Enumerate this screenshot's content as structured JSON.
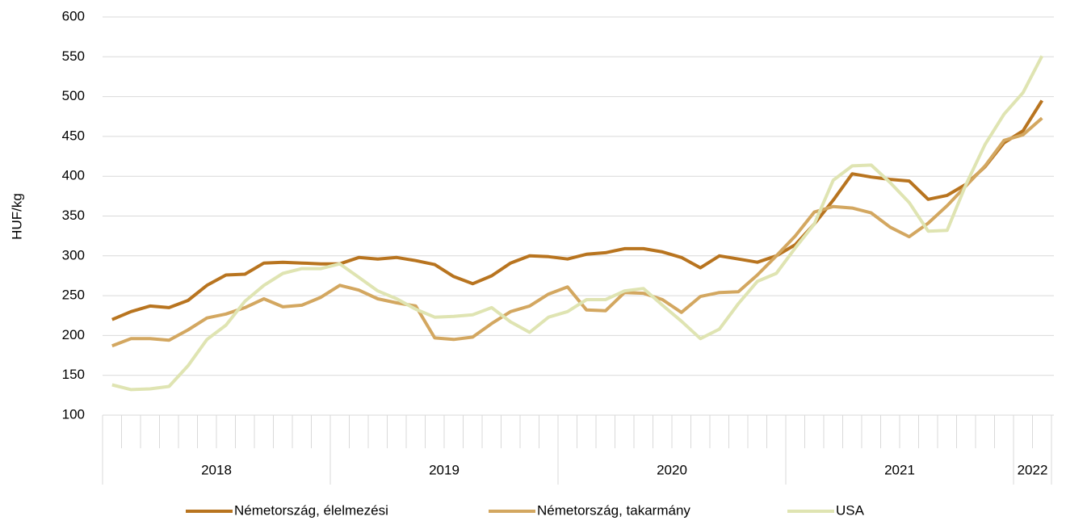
{
  "chart_data": {
    "type": "line",
    "y_label": "HUF/kg",
    "categories": [
      null,
      null,
      null,
      null,
      null,
      null,
      null,
      null,
      null,
      null,
      null,
      null,
      null,
      null,
      null,
      null,
      null,
      null,
      null,
      null,
      null,
      null,
      null,
      null,
      null,
      null,
      null,
      null,
      null,
      null,
      null,
      null,
      null,
      null,
      null,
      null,
      null,
      null,
      null,
      null,
      null,
      null,
      null,
      null,
      null,
      null,
      null,
      null,
      null,
      null
    ],
    "groups": [
      {
        "label": "2018",
        "span": 12
      },
      {
        "label": "2019",
        "span": 12
      },
      {
        "label": "2020",
        "span": 12
      },
      {
        "label": "2021",
        "span": 12
      },
      {
        "label": "2022",
        "span": 2
      }
    ],
    "series": [
      {
        "name": "Németország, élelmezési",
        "color": "#b8741f",
        "values": [
          220,
          230,
          237,
          235,
          244,
          263,
          276,
          277,
          291,
          292,
          291,
          290,
          290,
          298,
          296,
          298,
          294,
          289,
          274,
          265,
          275,
          291,
          300,
          299,
          296,
          302,
          304,
          309,
          309,
          305,
          298,
          285,
          300,
          296,
          292,
          300,
          314,
          340,
          370,
          403,
          399,
          396,
          394,
          371,
          376,
          390,
          412,
          442,
          457,
          495
        ]
      },
      {
        "name": "Németország, takarmány",
        "color": "#d3a760",
        "values": [
          187,
          196,
          196,
          194,
          207,
          222,
          227,
          235,
          246,
          236,
          238,
          248,
          263,
          257,
          246,
          241,
          237,
          197,
          195,
          198,
          215,
          230,
          237,
          252,
          261,
          232,
          231,
          254,
          253,
          245,
          229,
          249,
          254,
          255,
          276,
          300,
          325,
          355,
          362,
          360,
          354,
          336,
          324,
          341,
          363,
          388,
          413,
          445,
          452,
          473
        ]
      },
      {
        "name": "USA",
        "color": "#dfe4b2",
        "values": [
          138,
          132,
          133,
          136,
          162,
          195,
          213,
          243,
          263,
          278,
          284,
          284,
          290,
          273,
          256,
          246,
          233,
          223,
          224,
          226,
          235,
          217,
          204,
          223,
          230,
          245,
          245,
          256,
          259,
          238,
          218,
          196,
          208,
          240,
          268,
          278,
          310,
          340,
          395,
          413,
          414,
          392,
          367,
          331,
          332,
          390,
          440,
          478,
          505,
          551
        ]
      }
    ],
    "ylim": [
      100,
      600
    ],
    "yticks": [
      100,
      150,
      200,
      250,
      300,
      350,
      400,
      450,
      500,
      550,
      600
    ],
    "grid": true,
    "legend": "bottom"
  }
}
